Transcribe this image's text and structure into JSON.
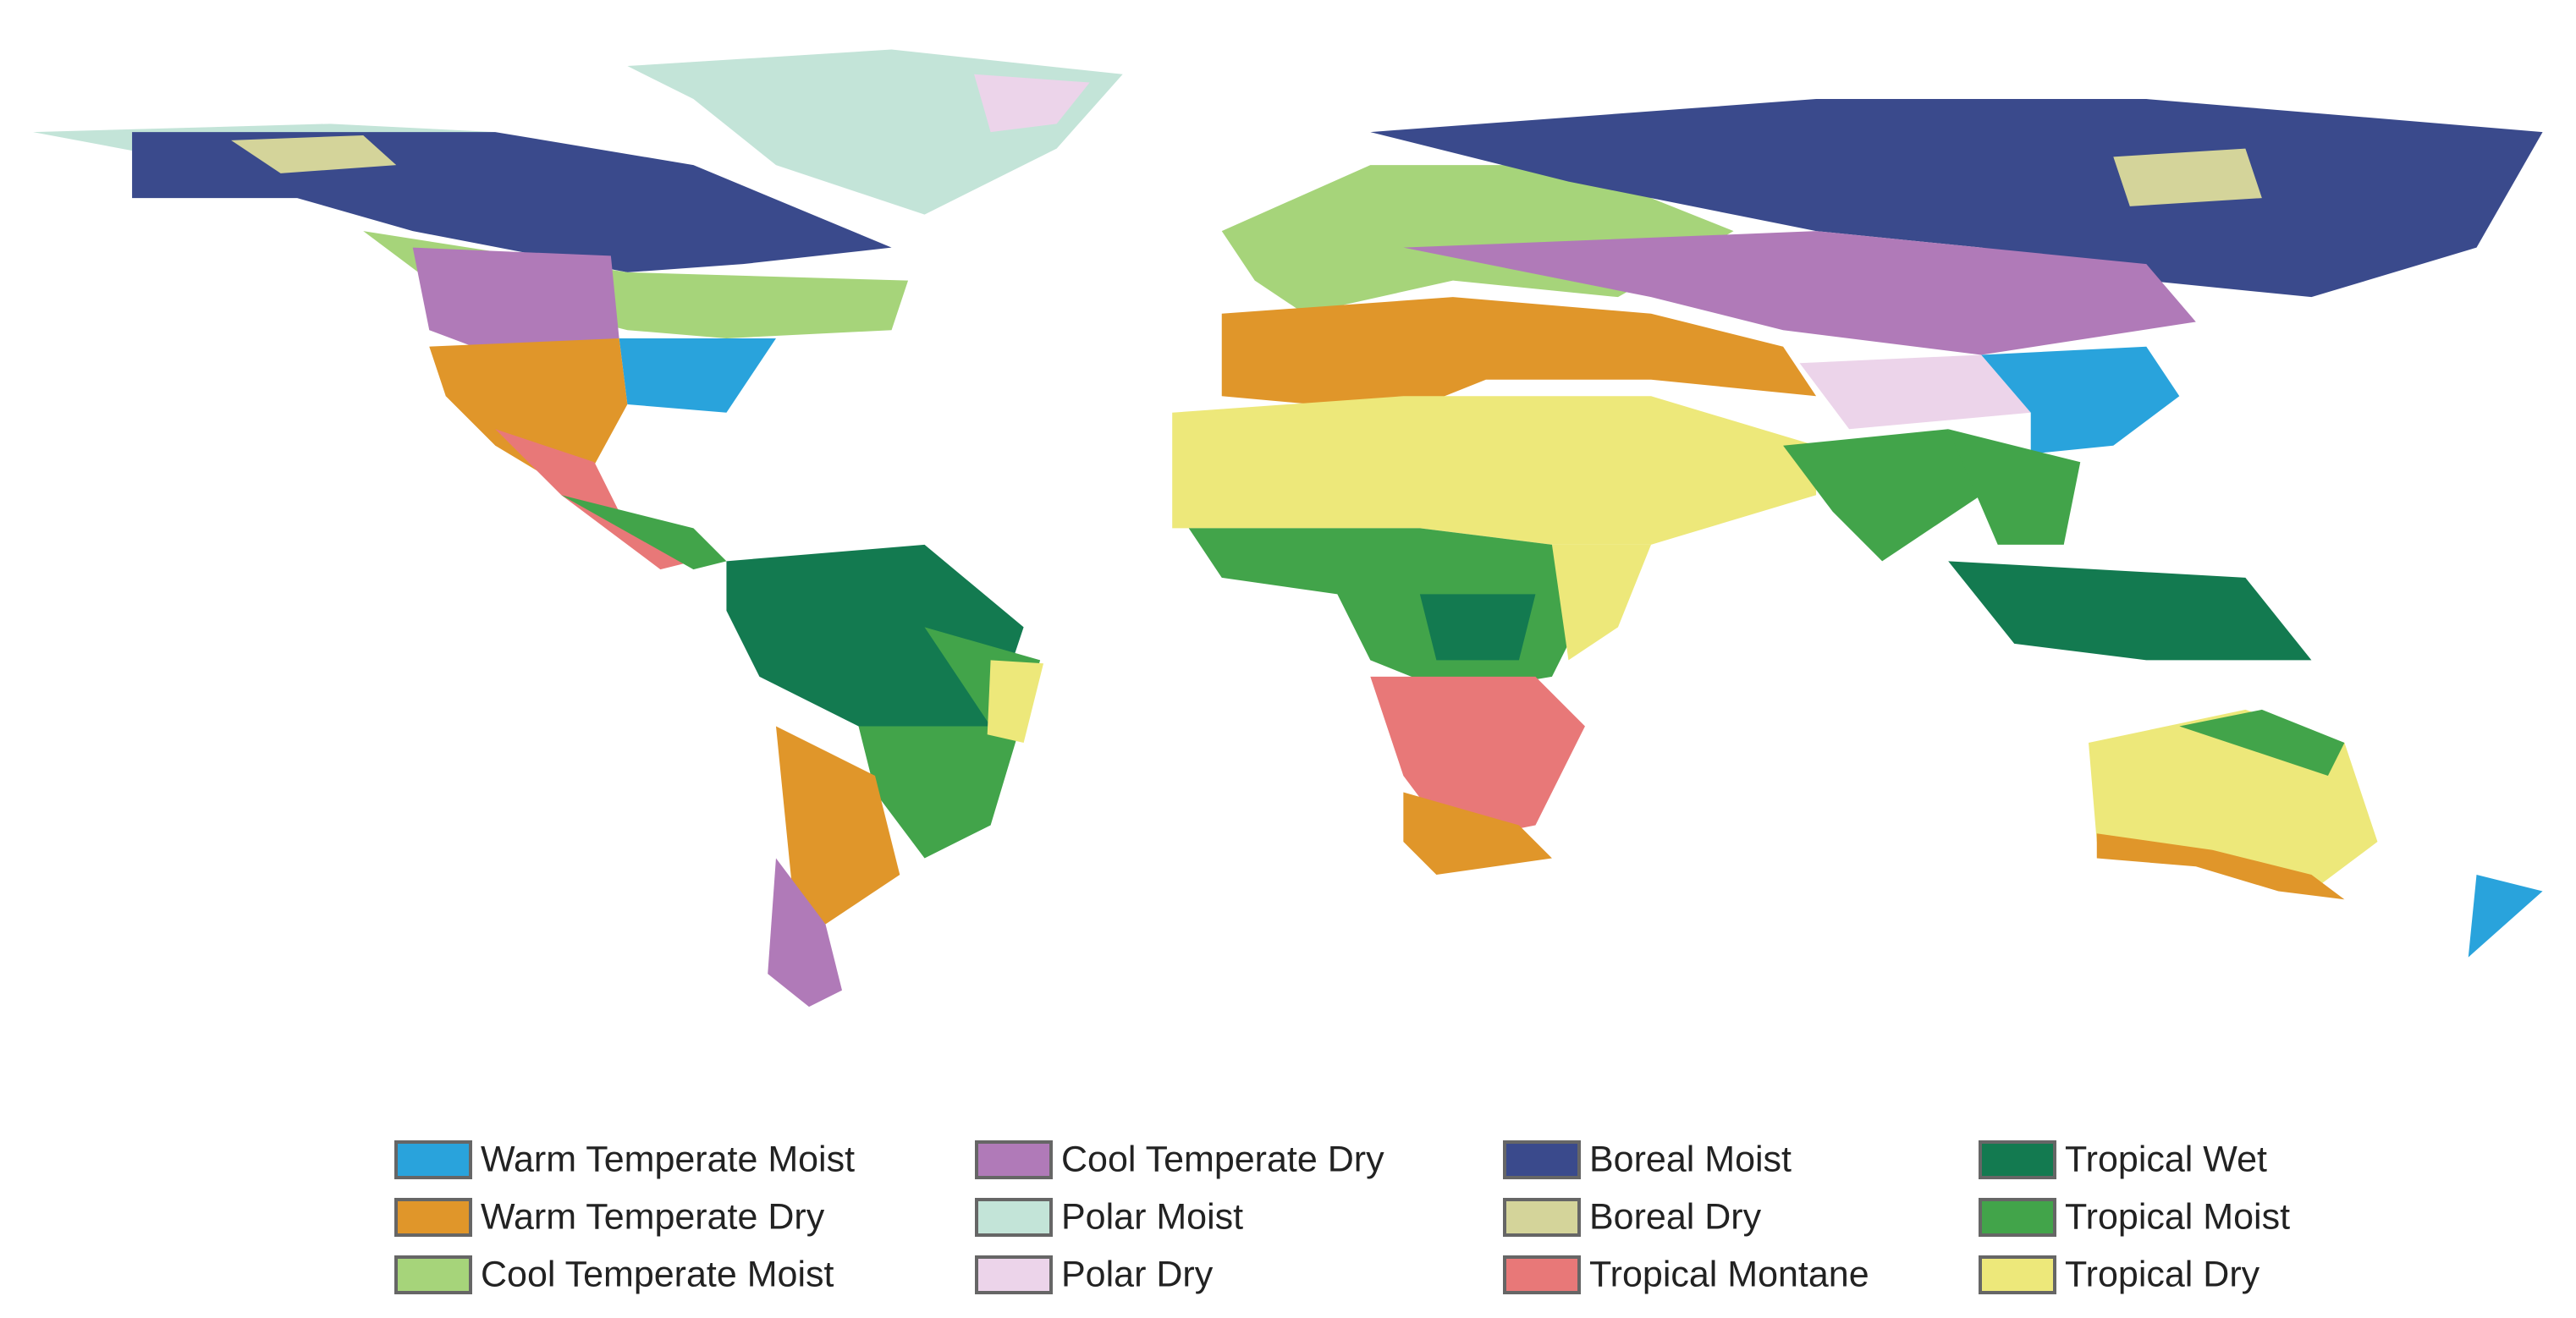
{
  "legend": {
    "items": [
      {
        "name": "Warm Temperate Moist",
        "color": "#29a3dc"
      },
      {
        "name": "Warm Temperate Dry",
        "color": "#e0962a"
      },
      {
        "name": "Cool Temperate Moist",
        "color": "#a6d47a"
      },
      {
        "name": "Cool Temperate Dry",
        "color": "#b07ab8"
      },
      {
        "name": "Polar Moist",
        "color": "#c3e4d8"
      },
      {
        "name": "Polar Dry",
        "color": "#ecd4ea"
      },
      {
        "name": "Boreal Moist",
        "color": "#3a4a8c"
      },
      {
        "name": "Boreal Dry",
        "color": "#d4d49a"
      },
      {
        "name": "Tropical Montane",
        "color": "#e87878"
      },
      {
        "name": "Tropical Wet",
        "color": "#137a50"
      },
      {
        "name": "Tropical Moist",
        "color": "#42a44a"
      },
      {
        "name": "Tropical Dry",
        "color": "#ede87a"
      }
    ]
  }
}
